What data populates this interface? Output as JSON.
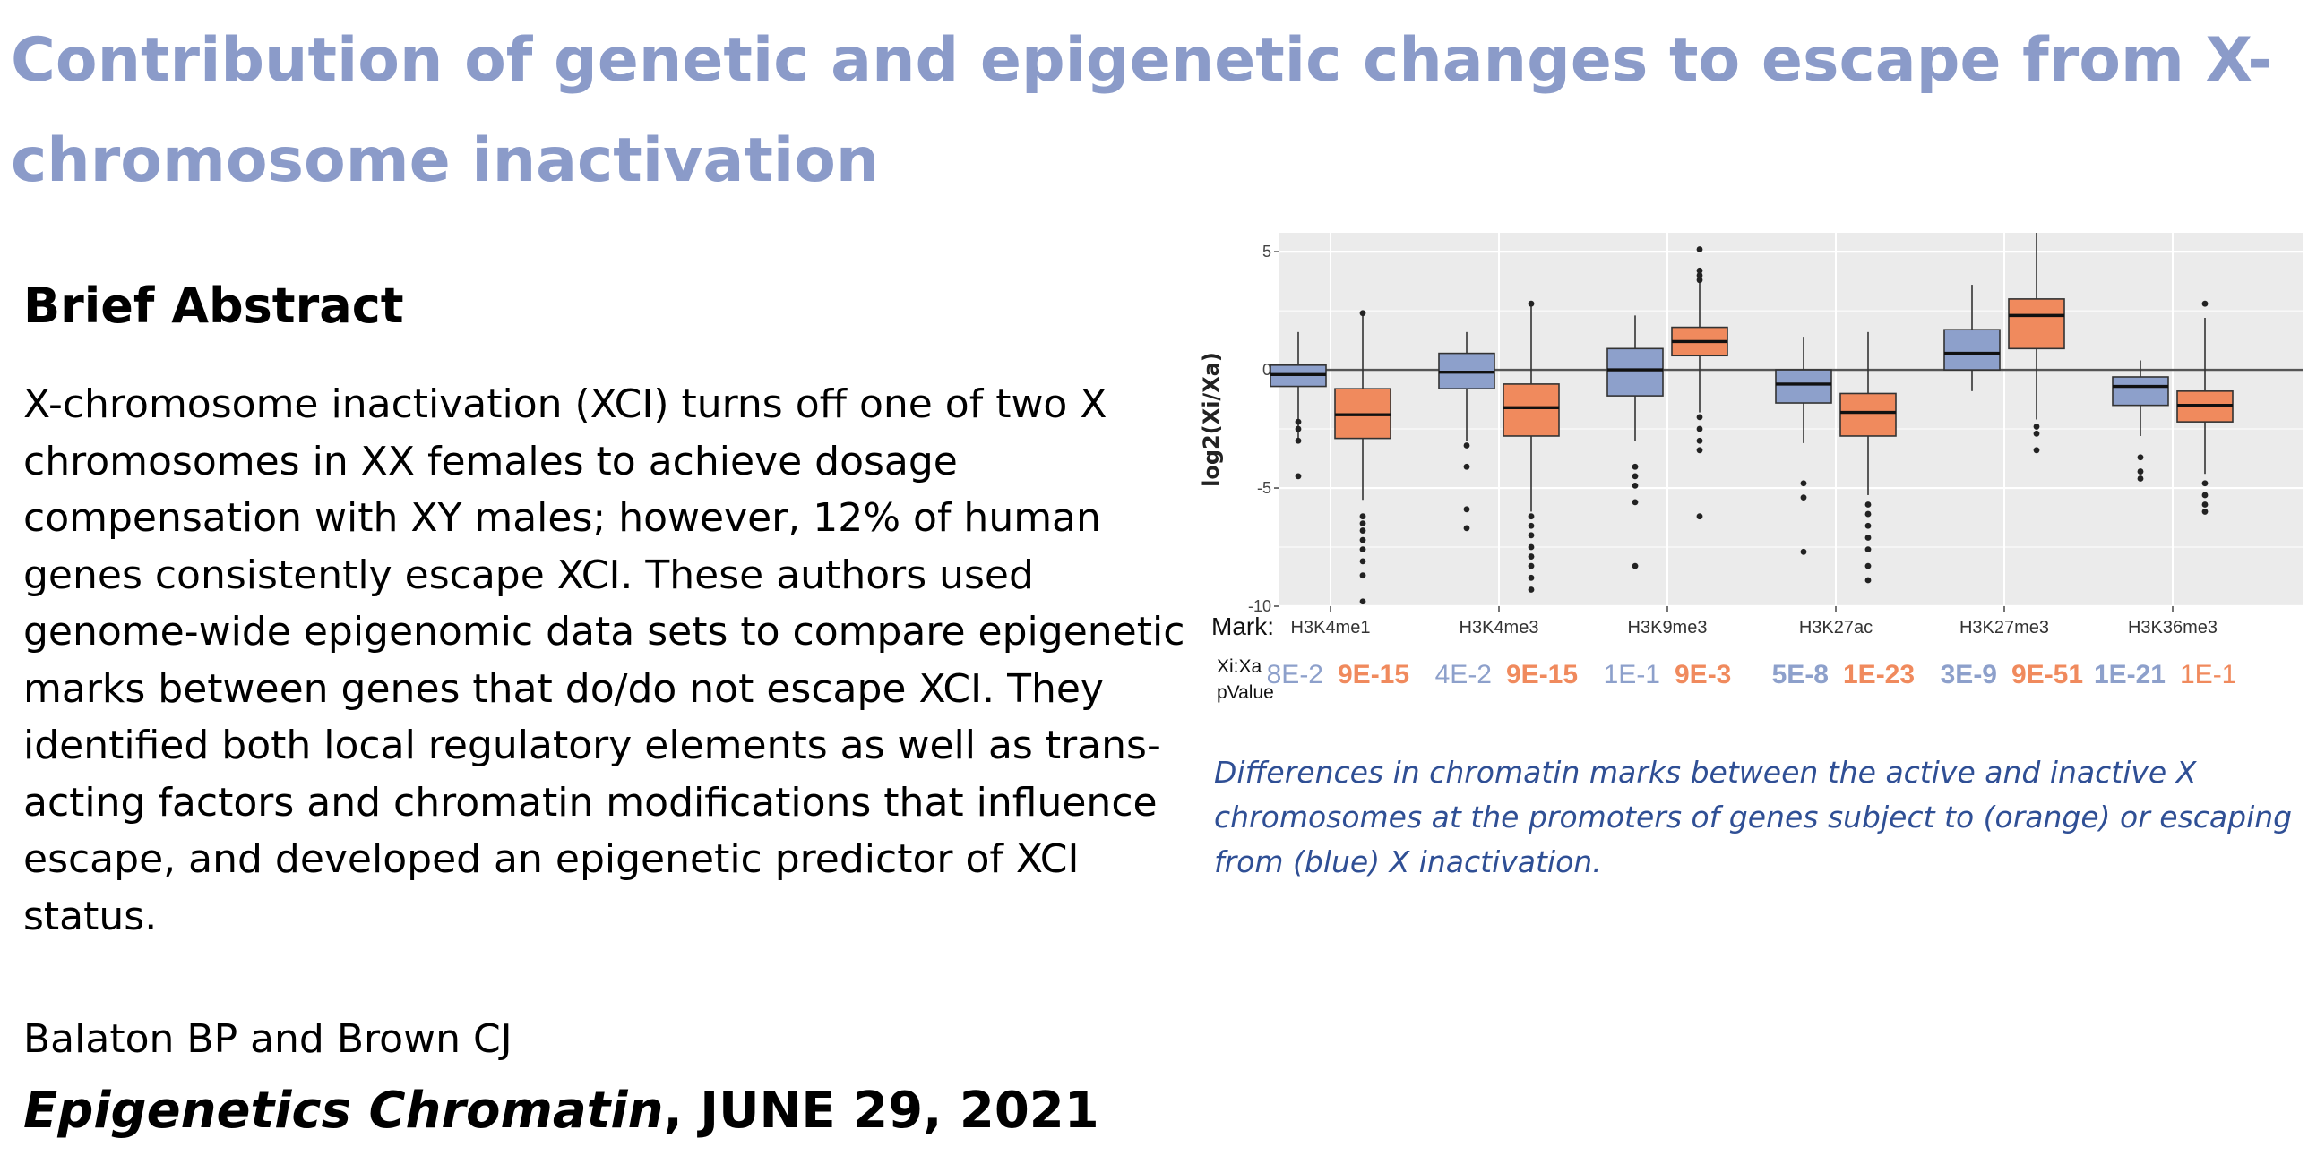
{
  "title": "Contribution of genetic and epigenetic changes to escape from X-chromosome inactivation",
  "abstract": {
    "heading": "Brief Abstract",
    "body": "X-chromosome inactivation (XCI) turns off one of two X chromosomes in XX females to achieve dosage compensation with XY males; however, 12% of human genes consistently escape XCI. These authors used genome-wide epigenomic data sets to compare epigenetic marks between genes that do/do not escape XCI. They identified both local regulatory elements as well as trans-acting factors and chromatin modifications that influence escape, and developed an epigenetic predictor of XCI status."
  },
  "citation": {
    "authors": "Balaton BP and Brown CJ",
    "journal": "Epigenetics Chromatin",
    "date": ", JUNE 29, 2021"
  },
  "figure": {
    "caption": "Differences in chromatin marks between the active and inactive X chromosomes at the promoters of genes subject to (orange) or escaping from (blue) X inactivation.",
    "row_mark_label": "Mark:",
    "row_p_label_1": "Xi:Xa",
    "row_p_label_2": "pValue",
    "colors": {
      "escape": "#8da0cb",
      "subject": "#f08a5d",
      "panel_bg": "#ebebeb",
      "escape_text": "#8da0cb",
      "subject_text": "#f08a5d"
    }
  },
  "chart_data": {
    "type": "box",
    "ylabel": "log2(Xi/Xa)",
    "ylim": [
      -10,
      5.8
    ],
    "yticks": [
      5,
      0,
      -5,
      -10
    ],
    "grid": true,
    "series_colors": [
      "escape (blue)",
      "subject (orange)"
    ],
    "categories": [
      {
        "mark": "H3K4me1",
        "escape": {
          "whisker_low": -3.0,
          "q1": -0.7,
          "median": -0.2,
          "q3": 0.2,
          "whisker_high": 1.6,
          "outliers": [
            -2.2,
            -2.5,
            -3.0,
            -4.5
          ],
          "pvalue": "8E-2",
          "p_bold": false
        },
        "subject": {
          "whisker_low": -5.5,
          "q1": -2.9,
          "median": -1.9,
          "q3": -0.8,
          "whisker_high": 2.3,
          "outliers": [
            2.4,
            -6.2,
            -6.5,
            -6.8,
            -7.2,
            -7.6,
            -8.1,
            -8.7,
            -9.8
          ],
          "pvalue": "9E-15",
          "p_bold": true
        }
      },
      {
        "mark": "H3K4me3",
        "escape": {
          "whisker_low": -3.0,
          "q1": -0.8,
          "median": -0.1,
          "q3": 0.7,
          "whisker_high": 1.6,
          "outliers": [
            -3.2,
            -4.1,
            -5.9,
            -6.7
          ],
          "pvalue": "4E-2",
          "p_bold": false
        },
        "subject": {
          "whisker_low": -6.0,
          "q1": -2.8,
          "median": -1.6,
          "q3": -0.6,
          "whisker_high": 2.7,
          "outliers": [
            2.8,
            -6.2,
            -6.6,
            -7.0,
            -7.5,
            -7.9,
            -8.3,
            -8.8,
            -9.3
          ],
          "pvalue": "9E-15",
          "p_bold": true
        }
      },
      {
        "mark": "H3K9me3",
        "escape": {
          "whisker_low": -3.0,
          "q1": -1.1,
          "median": 0.0,
          "q3": 0.9,
          "whisker_high": 2.3,
          "outliers": [
            -4.1,
            -4.5,
            -4.9,
            -5.6,
            -8.3
          ],
          "pvalue": "1E-1",
          "p_bold": false
        },
        "subject": {
          "whisker_low": -1.8,
          "q1": 0.6,
          "median": 1.2,
          "q3": 1.8,
          "whisker_high": 3.8,
          "outliers": [
            5.1,
            4.2,
            4.0,
            3.8,
            -2.0,
            -2.5,
            -3.0,
            -3.4,
            -6.2
          ],
          "pvalue": "9E-3",
          "p_bold": true
        }
      },
      {
        "mark": "H3K27ac",
        "escape": {
          "whisker_low": -3.1,
          "q1": -1.4,
          "median": -0.6,
          "q3": 0.0,
          "whisker_high": 1.4,
          "outliers": [
            -4.8,
            -5.4,
            -7.7
          ],
          "pvalue": "5E-8",
          "p_bold": true
        },
        "subject": {
          "whisker_low": -5.3,
          "q1": -2.8,
          "median": -1.8,
          "q3": -1.0,
          "whisker_high": 1.6,
          "outliers": [
            -5.7,
            -6.1,
            -6.6,
            -7.1,
            -7.6,
            -8.3,
            -8.9
          ],
          "pvalue": "1E-23",
          "p_bold": true
        }
      },
      {
        "mark": "H3K27me3",
        "escape": {
          "whisker_low": -0.9,
          "q1": 0.0,
          "median": 0.7,
          "q3": 1.7,
          "whisker_high": 3.6,
          "outliers": [],
          "pvalue": "3E-9",
          "p_bold": true
        },
        "subject": {
          "whisker_low": -2.1,
          "q1": 0.9,
          "median": 2.3,
          "q3": 3.0,
          "whisker_high": 5.8,
          "outliers": [
            -2.4,
            -2.7,
            -3.4
          ],
          "pvalue": "9E-51",
          "p_bold": true
        }
      },
      {
        "mark": "H3K36me3",
        "escape": {
          "whisker_low": -2.8,
          "q1": -1.5,
          "median": -0.7,
          "q3": -0.3,
          "whisker_high": 0.4,
          "outliers": [
            -3.7,
            -4.3,
            -4.6
          ],
          "pvalue": "1E-21",
          "p_bold": true
        },
        "subject": {
          "whisker_low": -4.4,
          "q1": -2.2,
          "median": -1.5,
          "q3": -0.9,
          "whisker_high": 2.2,
          "outliers": [
            2.8,
            -4.8,
            -5.3,
            -5.7,
            -6.0
          ],
          "pvalue": "1E-1",
          "p_bold": false
        }
      }
    ]
  }
}
